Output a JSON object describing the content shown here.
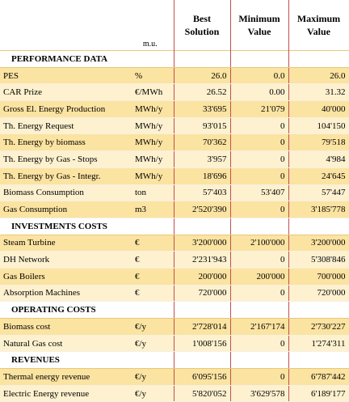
{
  "table": {
    "header": {
      "unit": "m.u.",
      "columns": [
        "Best Solution",
        "Minimum Value",
        "Maximum Value"
      ]
    },
    "sections": [
      {
        "title": "PERFORMANCE DATA",
        "rows": [
          [
            "PES",
            "%",
            "26.0",
            "0.0",
            "26.0"
          ],
          [
            "CAR Prize",
            "€/MWh",
            "26.52",
            "0.00",
            "31.32"
          ],
          [
            "Gross El. Energy Production",
            "MWh/y",
            "33'695",
            "21'079",
            "40'000"
          ],
          [
            "Th. Energy Request",
            "MWh/y",
            "93'015",
            "0",
            "104'150"
          ],
          [
            "Th. Energy by biomass",
            "MWh/y",
            "70'362",
            "0",
            "79'518"
          ],
          [
            "Th. Energy by Gas - Stops",
            "MWh/y",
            "3'957",
            "0",
            "4'984"
          ],
          [
            "Th. Energy by Gas - Integr.",
            "MWh/y",
            "18'696",
            "0",
            "24'645"
          ],
          [
            "Biomass Consumption",
            "ton",
            "57'403",
            "53'407",
            "57'447"
          ],
          [
            "Gas Consumption",
            "m3",
            "2'520'390",
            "0",
            "3'185'778"
          ]
        ]
      },
      {
        "title": "INVESTMENTS COSTS",
        "rows": [
          [
            "Steam Turbine",
            "€",
            "3'200'000",
            "2'100'000",
            "3'200'000"
          ],
          [
            "DH Network",
            "€",
            "2'231'943",
            "0",
            "5'308'846"
          ],
          [
            "Gas Boilers",
            "€",
            "200'000",
            "200'000",
            "700'000"
          ],
          [
            "Absorption Machines",
            "€",
            "720'000",
            "0",
            "720'000"
          ]
        ]
      },
      {
        "title": "OPERATING COSTS",
        "rows": [
          [
            "Biomass cost",
            "€/y",
            "2'728'014",
            "2'167'174",
            "2'730'227"
          ],
          [
            "Natural Gas cost",
            "€/y",
            "1'008'156",
            "0",
            "1'274'311"
          ]
        ]
      },
      {
        "title": "REVENUES",
        "rows": [
          [
            "Thermal energy revenue",
            "€/y",
            "6'095'156",
            "0",
            "6'787'442"
          ],
          [
            "Electric Energy revenue",
            "€/y",
            "5'820'052",
            "3'629'578",
            "6'189'177"
          ]
        ]
      }
    ]
  }
}
